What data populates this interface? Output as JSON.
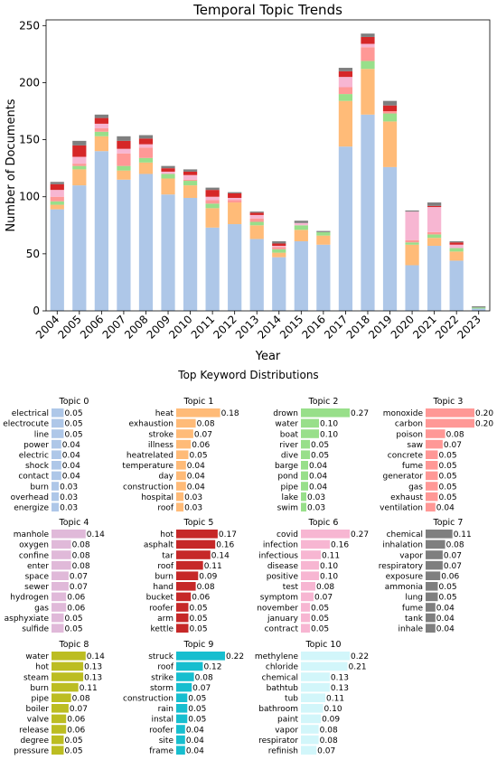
{
  "chart_data": [
    {
      "type": "bar",
      "stacked": true,
      "title": "Temporal Topic Trends",
      "xlabel": "Year",
      "ylabel": "Number of Documents",
      "ylim": [
        0,
        255
      ],
      "yticks": [
        0,
        50,
        100,
        150,
        200,
        250
      ],
      "categories": [
        "2004",
        "2005",
        "2006",
        "2007",
        "2008",
        "2009",
        "2010",
        "2011",
        "2012",
        "2013",
        "2014",
        "2015",
        "2016",
        "2017",
        "2018",
        "2019",
        "2020",
        "2021",
        "2022",
        "2023"
      ],
      "series": [
        {
          "color": "#aec7e8",
          "values": [
            89,
            110,
            140,
            115,
            120,
            102,
            99,
            73,
            76,
            63,
            47,
            61,
            58,
            144,
            172,
            126,
            40,
            57,
            44,
            2
          ]
        },
        {
          "color": "#ffbb78",
          "values": [
            4,
            14,
            13,
            8,
            10,
            14,
            11,
            17,
            19,
            12,
            4,
            10,
            8,
            40,
            40,
            40,
            18,
            7,
            8,
            0
          ]
        },
        {
          "color": "#98df8a",
          "values": [
            3,
            3,
            4,
            4,
            4,
            4,
            4,
            4,
            0,
            3,
            3,
            4,
            3,
            6,
            7,
            7,
            2,
            3,
            3,
            1
          ]
        },
        {
          "color": "#ff9896",
          "values": [
            4,
            2,
            3,
            11,
            9,
            0,
            1,
            3,
            2,
            3,
            2,
            0,
            0,
            6,
            12,
            2,
            2,
            2,
            0,
            0
          ]
        },
        {
          "color": "#f7b6d2",
          "values": [
            6,
            6,
            4,
            4,
            3,
            2,
            4,
            3,
            2,
            3,
            1,
            2,
            0,
            9,
            3,
            0,
            25,
            22,
            3,
            0
          ]
        },
        {
          "color": "#d62728",
          "values": [
            5,
            10,
            5,
            7,
            5,
            3,
            3,
            6,
            4,
            2,
            2,
            0,
            0,
            5,
            6,
            5,
            0,
            1,
            2,
            0
          ],
          "label": "Topic 5"
        },
        {
          "color": "#7f7f7f",
          "values": [
            2,
            4,
            3,
            4,
            3,
            2,
            2,
            2,
            1,
            1,
            2,
            2,
            1,
            3,
            3,
            4,
            1,
            3,
            1,
            1
          ]
        }
      ],
      "grid": false
    },
    {
      "type": "bar",
      "orientation": "horizontal",
      "title": "Top Keyword Distributions",
      "panels": [
        {
          "title": "Topic 0",
          "color": "#aec7e8",
          "words": [
            "electrical",
            "electrocute",
            "line",
            "power",
            "electric",
            "shock",
            "contact",
            "burn",
            "overhead",
            "energize"
          ],
          "values": [
            0.05,
            0.05,
            0.05,
            0.04,
            0.04,
            0.04,
            0.04,
            0.03,
            0.03,
            0.03
          ],
          "labels": [
            "0.05",
            "0.05",
            "0.05",
            "0.04",
            "0.04",
            "0.04",
            "0.04",
            "0.03",
            "0.03",
            "0.03"
          ]
        },
        {
          "title": "Topic 1",
          "color": "#ffbb78",
          "words": [
            "heat",
            "exhaustion",
            "stroke",
            "illness",
            "heatrelated",
            "temperature",
            "day",
            "construction",
            "hospital",
            "roof"
          ],
          "values": [
            0.18,
            0.08,
            0.07,
            0.06,
            0.05,
            0.04,
            0.04,
            0.04,
            0.03,
            0.03
          ],
          "labels": [
            "0.18",
            "0.08",
            "0.07",
            "0.06",
            "0.05",
            "0.04",
            "0.04",
            "0.04",
            "0.03",
            "0.03"
          ]
        },
        {
          "title": "Topic 2",
          "color": "#98df8a",
          "words": [
            "drown",
            "water",
            "boat",
            "river",
            "dive",
            "barge",
            "pond",
            "pipe",
            "lake",
            "swim"
          ],
          "values": [
            0.27,
            0.1,
            0.1,
            0.05,
            0.05,
            0.04,
            0.04,
            0.04,
            0.03,
            0.03
          ],
          "labels": [
            "0.27",
            "0.10",
            "0.10",
            "0.05",
            "0.05",
            "0.04",
            "0.04",
            "0.04",
            "0.03",
            "0.03"
          ]
        },
        {
          "title": "Topic 3",
          "color": "#ff9896",
          "words": [
            "monoxide",
            "carbon",
            "poison",
            "saw",
            "concrete",
            "fume",
            "generator",
            "gas",
            "exhaust",
            "ventilation"
          ],
          "values": [
            0.2,
            0.2,
            0.08,
            0.07,
            0.05,
            0.05,
            0.05,
            0.05,
            0.05,
            0.04
          ],
          "labels": [
            "0.20",
            "0.20",
            "0.08",
            "0.07",
            "0.05",
            "0.05",
            "0.05",
            "0.05",
            "0.05",
            "0.04"
          ]
        },
        {
          "title": "Topic 4",
          "color": "#e0b9d9",
          "words": [
            "manhole",
            "oxygen",
            "confine",
            "enter",
            "space",
            "sewer",
            "hydrogen",
            "gas",
            "asphyxiate",
            "sulfide"
          ],
          "values": [
            0.14,
            0.08,
            0.08,
            0.08,
            0.07,
            0.07,
            0.06,
            0.06,
            0.05,
            0.05
          ],
          "labels": [
            "0.14",
            "0.08",
            "0.08",
            "0.08",
            "0.07",
            "0.07",
            "0.06",
            "0.06",
            "0.05",
            "0.05"
          ]
        },
        {
          "title": "Topic 5",
          "color": "#c62828",
          "words": [
            "hot",
            "asphalt",
            "tar",
            "roof",
            "burn",
            "hand",
            "bucket",
            "roofer",
            "arm",
            "kettle"
          ],
          "values": [
            0.17,
            0.16,
            0.14,
            0.11,
            0.09,
            0.08,
            0.06,
            0.05,
            0.05,
            0.05
          ],
          "labels": [
            "0.17",
            "0.16",
            "0.14",
            "0.11",
            "0.09",
            "0.08",
            "0.06",
            "0.05",
            "0.05",
            "0.05"
          ]
        },
        {
          "title": "Topic 6",
          "color": "#f7b6d2",
          "words": [
            "covid",
            "infection",
            "infectious",
            "disease",
            "positive",
            "test",
            "symptom",
            "november",
            "january",
            "contract"
          ],
          "values": [
            0.27,
            0.16,
            0.11,
            0.1,
            0.1,
            0.08,
            0.07,
            0.05,
            0.05,
            0.05
          ],
          "labels": [
            "0.27",
            "0.16",
            "0.11",
            "0.10",
            "0.10",
            "0.08",
            "0.07",
            "0.05",
            "0.05",
            "0.05"
          ]
        },
        {
          "title": "Topic 7",
          "color": "#7f7f7f",
          "words": [
            "chemical",
            "inhalation",
            "vapor",
            "respiratory",
            "exposure",
            "ammonia",
            "lung",
            "fume",
            "tank",
            "inhale"
          ],
          "values": [
            0.11,
            0.08,
            0.07,
            0.07,
            0.06,
            0.05,
            0.05,
            0.04,
            0.04,
            0.04
          ],
          "labels": [
            "0.11",
            "0.08",
            "0.07",
            "0.07",
            "0.06",
            "0.05",
            "0.05",
            "0.04",
            "0.04",
            "0.04"
          ]
        },
        {
          "title": "Topic 8",
          "color": "#bcbd22",
          "words": [
            "water",
            "hot",
            "steam",
            "burn",
            "pipe",
            "boiler",
            "valve",
            "release",
            "degree",
            "pressure"
          ],
          "values": [
            0.14,
            0.13,
            0.13,
            0.11,
            0.08,
            0.07,
            0.06,
            0.06,
            0.05,
            0.05
          ],
          "labels": [
            "0.14",
            "0.13",
            "0.13",
            "0.11",
            "0.08",
            "0.07",
            "0.06",
            "0.06",
            "0.05",
            "0.05"
          ]
        },
        {
          "title": "Topic 9",
          "color": "#17becf",
          "words": [
            "struck",
            "roof",
            "strike",
            "storm",
            "construction",
            "rain",
            "instal",
            "roofer",
            "site",
            "frame"
          ],
          "values": [
            0.22,
            0.12,
            0.08,
            0.07,
            0.05,
            0.05,
            0.05,
            0.04,
            0.04,
            0.04
          ],
          "labels": [
            "0.22",
            "0.12",
            "0.08",
            "0.07",
            "0.05",
            "0.05",
            "0.05",
            "0.04",
            "0.04",
            "0.04"
          ]
        },
        {
          "title": "Topic 10",
          "color": "#d2f6fa",
          "words": [
            "methylene",
            "chloride",
            "chemical",
            "bathtub",
            "tub",
            "bathroom",
            "paint",
            "vapor",
            "respirator",
            "refinish"
          ],
          "values": [
            0.22,
            0.21,
            0.13,
            0.13,
            0.11,
            0.1,
            0.09,
            0.08,
            0.08,
            0.07
          ],
          "labels": [
            "0.22",
            "0.21",
            "0.13",
            "0.13",
            "0.11",
            "0.10",
            "0.09",
            "0.08",
            "0.08",
            "0.07"
          ]
        }
      ]
    }
  ]
}
